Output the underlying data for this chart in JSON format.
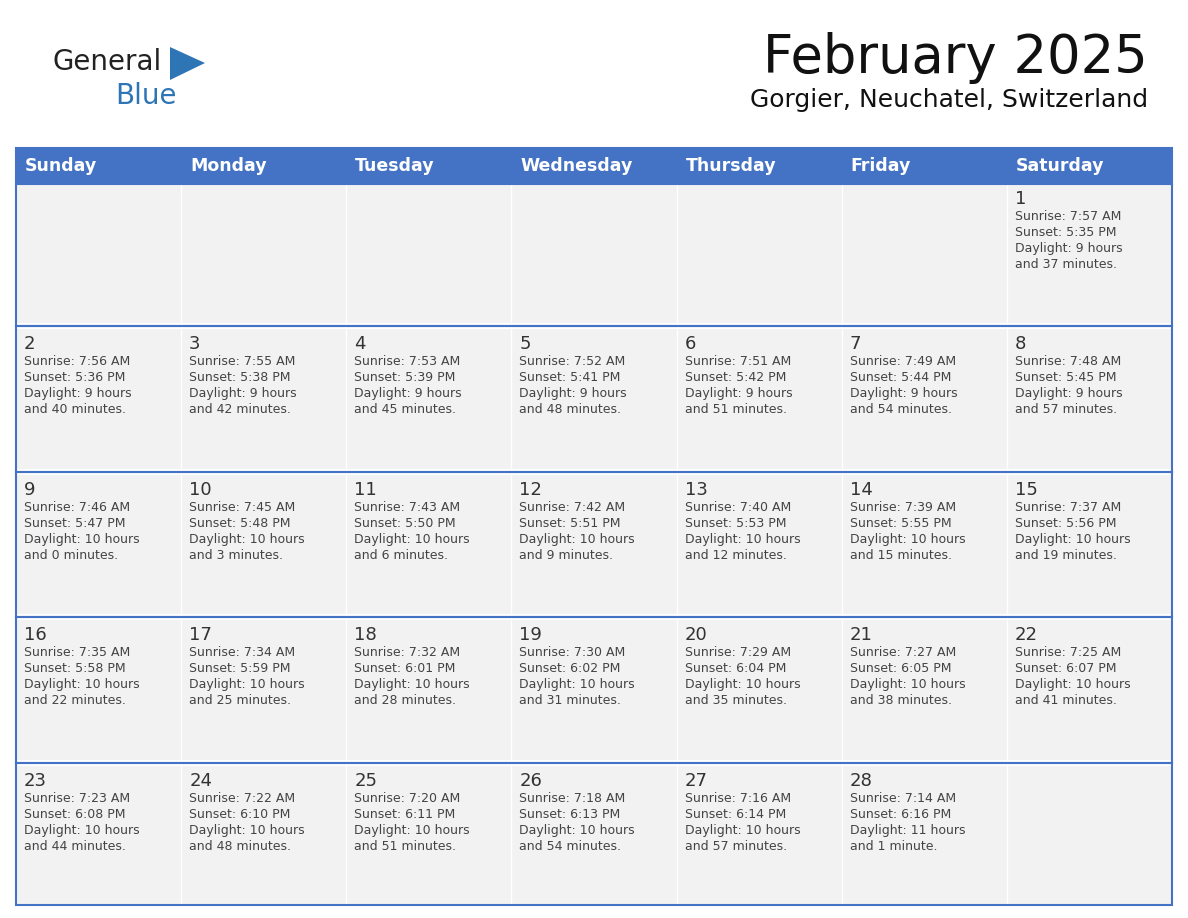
{
  "title": "February 2025",
  "subtitle": "Gorgier, Neuchatel, Switzerland",
  "days_of_week": [
    "Sunday",
    "Monday",
    "Tuesday",
    "Wednesday",
    "Thursday",
    "Friday",
    "Saturday"
  ],
  "header_bg": "#4472C4",
  "header_text": "#FFFFFF",
  "cell_bg": "#F2F2F2",
  "cell_bg_white": "#FFFFFF",
  "border_color": "#4472C4",
  "row_gap_color": "#FFFFFF",
  "text_color": "#444444",
  "day_number_color": "#333333",
  "logo_general_color": "#222222",
  "logo_blue_color": "#2E75B6",
  "calendar_data": [
    [
      null,
      null,
      null,
      null,
      null,
      null,
      {
        "day": 1,
        "sunrise": "7:57 AM",
        "sunset": "5:35 PM",
        "daylight": "9 hours\nand 37 minutes."
      }
    ],
    [
      {
        "day": 2,
        "sunrise": "7:56 AM",
        "sunset": "5:36 PM",
        "daylight": "9 hours\nand 40 minutes."
      },
      {
        "day": 3,
        "sunrise": "7:55 AM",
        "sunset": "5:38 PM",
        "daylight": "9 hours\nand 42 minutes."
      },
      {
        "day": 4,
        "sunrise": "7:53 AM",
        "sunset": "5:39 PM",
        "daylight": "9 hours\nand 45 minutes."
      },
      {
        "day": 5,
        "sunrise": "7:52 AM",
        "sunset": "5:41 PM",
        "daylight": "9 hours\nand 48 minutes."
      },
      {
        "day": 6,
        "sunrise": "7:51 AM",
        "sunset": "5:42 PM",
        "daylight": "9 hours\nand 51 minutes."
      },
      {
        "day": 7,
        "sunrise": "7:49 AM",
        "sunset": "5:44 PM",
        "daylight": "9 hours\nand 54 minutes."
      },
      {
        "day": 8,
        "sunrise": "7:48 AM",
        "sunset": "5:45 PM",
        "daylight": "9 hours\nand 57 minutes."
      }
    ],
    [
      {
        "day": 9,
        "sunrise": "7:46 AM",
        "sunset": "5:47 PM",
        "daylight": "10 hours\nand 0 minutes."
      },
      {
        "day": 10,
        "sunrise": "7:45 AM",
        "sunset": "5:48 PM",
        "daylight": "10 hours\nand 3 minutes."
      },
      {
        "day": 11,
        "sunrise": "7:43 AM",
        "sunset": "5:50 PM",
        "daylight": "10 hours\nand 6 minutes."
      },
      {
        "day": 12,
        "sunrise": "7:42 AM",
        "sunset": "5:51 PM",
        "daylight": "10 hours\nand 9 minutes."
      },
      {
        "day": 13,
        "sunrise": "7:40 AM",
        "sunset": "5:53 PM",
        "daylight": "10 hours\nand 12 minutes."
      },
      {
        "day": 14,
        "sunrise": "7:39 AM",
        "sunset": "5:55 PM",
        "daylight": "10 hours\nand 15 minutes."
      },
      {
        "day": 15,
        "sunrise": "7:37 AM",
        "sunset": "5:56 PM",
        "daylight": "10 hours\nand 19 minutes."
      }
    ],
    [
      {
        "day": 16,
        "sunrise": "7:35 AM",
        "sunset": "5:58 PM",
        "daylight": "10 hours\nand 22 minutes."
      },
      {
        "day": 17,
        "sunrise": "7:34 AM",
        "sunset": "5:59 PM",
        "daylight": "10 hours\nand 25 minutes."
      },
      {
        "day": 18,
        "sunrise": "7:32 AM",
        "sunset": "6:01 PM",
        "daylight": "10 hours\nand 28 minutes."
      },
      {
        "day": 19,
        "sunrise": "7:30 AM",
        "sunset": "6:02 PM",
        "daylight": "10 hours\nand 31 minutes."
      },
      {
        "day": 20,
        "sunrise": "7:29 AM",
        "sunset": "6:04 PM",
        "daylight": "10 hours\nand 35 minutes."
      },
      {
        "day": 21,
        "sunrise": "7:27 AM",
        "sunset": "6:05 PM",
        "daylight": "10 hours\nand 38 minutes."
      },
      {
        "day": 22,
        "sunrise": "7:25 AM",
        "sunset": "6:07 PM",
        "daylight": "10 hours\nand 41 minutes."
      }
    ],
    [
      {
        "day": 23,
        "sunrise": "7:23 AM",
        "sunset": "6:08 PM",
        "daylight": "10 hours\nand 44 minutes."
      },
      {
        "day": 24,
        "sunrise": "7:22 AM",
        "sunset": "6:10 PM",
        "daylight": "10 hours\nand 48 minutes."
      },
      {
        "day": 25,
        "sunrise": "7:20 AM",
        "sunset": "6:11 PM",
        "daylight": "10 hours\nand 51 minutes."
      },
      {
        "day": 26,
        "sunrise": "7:18 AM",
        "sunset": "6:13 PM",
        "daylight": "10 hours\nand 54 minutes."
      },
      {
        "day": 27,
        "sunrise": "7:16 AM",
        "sunset": "6:14 PM",
        "daylight": "10 hours\nand 57 minutes."
      },
      {
        "day": 28,
        "sunrise": "7:14 AM",
        "sunset": "6:16 PM",
        "daylight": "11 hours\nand 1 minute."
      },
      null
    ]
  ]
}
